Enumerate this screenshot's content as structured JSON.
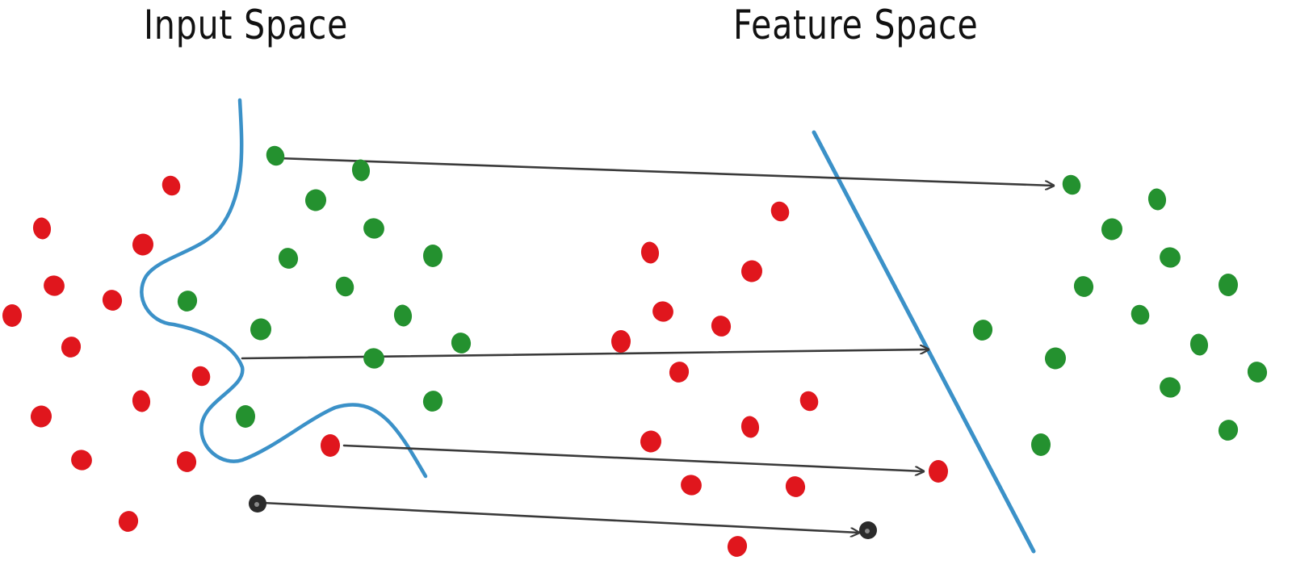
{
  "titles": {
    "input_space": "Input Space",
    "feature_space": "Feature Space"
  },
  "colors": {
    "class_a": "#e0161d",
    "class_b": "#24912f",
    "query_point": "#2b2b2b",
    "boundary": "#3b91c8",
    "mapping_arrow": "#3a3a3a"
  },
  "legend_semantics": {
    "class_a": "red points",
    "class_b": "green points",
    "boundary": "blue decision boundary",
    "mapping_arrow": "arrows map points from input space to feature space"
  }
}
